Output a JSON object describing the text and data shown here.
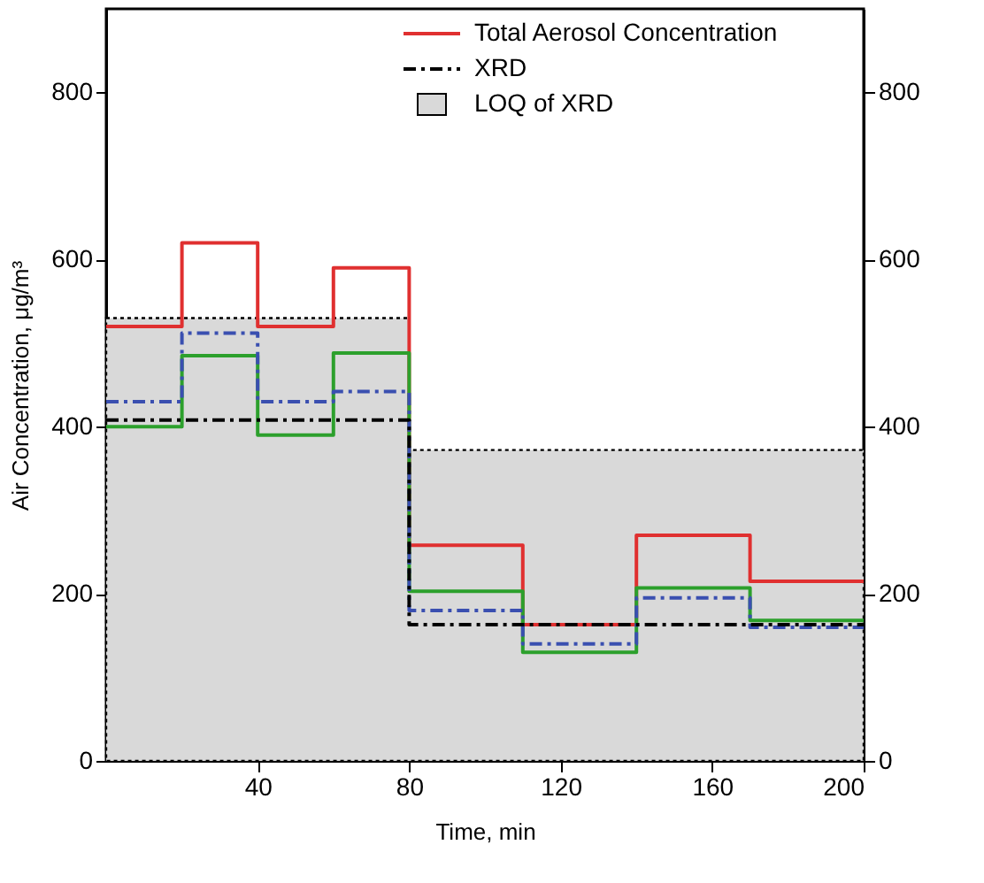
{
  "chart_data": {
    "type": "step",
    "xlabel": "Time, min",
    "ylabel": "Air Concentration, μg/m³",
    "x": [
      0,
      20,
      40,
      60,
      80,
      110,
      140,
      170,
      200
    ],
    "series": [
      {
        "name": "LOQ of XRD",
        "type": "area",
        "color": "#d9d9d9",
        "line_style": "dotted",
        "values": [
          530,
          530,
          530,
          530,
          372,
          372,
          372,
          372,
          372
        ]
      },
      {
        "name": "Total Aerosol Concentration",
        "color": "#e03030",
        "line_style": "solid",
        "values": [
          520,
          620,
          520,
          590,
          258,
          163,
          270,
          215,
          215
        ]
      },
      {
        "color": "#2ca02c",
        "line_style": "solid",
        "values": [
          400,
          485,
          390,
          488,
          203,
          130,
          207,
          168,
          168
        ]
      },
      {
        "color": "#3a4fb0",
        "line_style": "dashed",
        "values": [
          430,
          512,
          430,
          442,
          180,
          140,
          195,
          160,
          160
        ]
      },
      {
        "name": "XRD",
        "color": "#000000",
        "line_style": "dashed",
        "values": [
          408,
          408,
          408,
          408,
          163,
          163,
          163,
          163,
          163
        ]
      }
    ],
    "xlim": [
      0,
      200
    ],
    "xticks": [
      40,
      80,
      120,
      160,
      200
    ],
    "ylim": [
      0,
      900
    ],
    "yticks": [
      0,
      200,
      400,
      600,
      800
    ],
    "y2lim": [
      0,
      900
    ],
    "y2ticks": [
      0,
      200,
      400,
      600,
      800
    ],
    "grid": false,
    "legend": "top right"
  }
}
